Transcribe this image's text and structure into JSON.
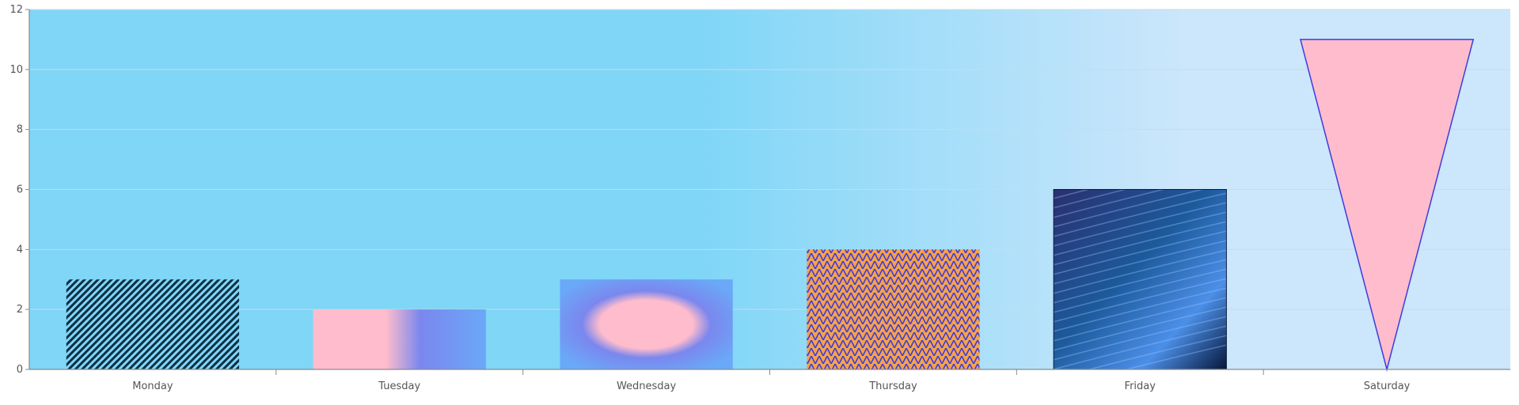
{
  "chart_data": {
    "type": "bar",
    "title": "",
    "xlabel": "",
    "ylabel": "",
    "categories": [
      "Monday",
      "Tuesday",
      "Wednesday",
      "Thursday",
      "Friday",
      "Saturday"
    ],
    "values": [
      3,
      2,
      3,
      4,
      6,
      11
    ],
    "ylim": [
      0,
      12
    ],
    "yticks": [
      0,
      2,
      4,
      6,
      8,
      10,
      12
    ],
    "grid": true,
    "legend": "none",
    "bar_fills": [
      "diagonal-hatch",
      "horizontal-gradient",
      "radial-gradient",
      "triangle-pattern",
      "wave-image",
      "pink-triangle"
    ],
    "colors": {
      "plot_bg_start": "#7fd6f7",
      "plot_bg_end": "#cce6fb",
      "grid": "#c9dbe6",
      "axis": "#8a8a8a",
      "hatch_line": "#0e2f44",
      "pink": "#ffbccc",
      "blue": "#6aa8f8",
      "periwinkle": "#7b87ee",
      "orange": "#f6a24a",
      "navy": "#07173a",
      "triangle_stroke": "#3c3cde"
    }
  }
}
